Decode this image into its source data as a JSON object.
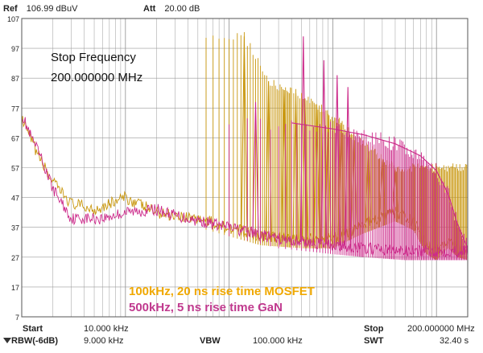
{
  "header": {
    "ref_label": "Ref",
    "ref_value": "106.99 dBuV",
    "att_label": "Att",
    "att_value": "20.00 dB"
  },
  "footer": {
    "start_label": "Start",
    "start_value": "10.000 kHz",
    "stop_label": "Stop",
    "stop_value": "200.000000 MHz",
    "rbw_label": "RBW(-6dB)",
    "rbw_value": "9.000 kHz",
    "vbw_label": "VBW",
    "vbw_value": "100.000 kHz",
    "swt_label": "SWT",
    "swt_value": "32.40 s"
  },
  "marker": {
    "line1": "Stop Frequency",
    "line2": "200.000000 MHz"
  },
  "colors": {
    "mosfet": "#c8960c",
    "gan": "#cc2a8a",
    "mosfet_text": "#f0a800",
    "gan_text": "#c0398e",
    "grid": "#9a9a9a"
  },
  "chart_data": {
    "type": "line",
    "title": "",
    "xlabel": "Frequency",
    "ylabel": "dBuV",
    "x_scale": "log",
    "xlim": [
      10000,
      200000000
    ],
    "ylim": [
      7,
      107
    ],
    "y_ticks": [
      107,
      97,
      87,
      77,
      67,
      57,
      47,
      37,
      27,
      17,
      7
    ],
    "series": [
      {
        "name": "100kHz, 20 ns rise time MOSFET",
        "color": "#c8960c",
        "fundamental_hz": 100000,
        "points": [
          [
            10000,
            73
          ],
          [
            12000,
            67
          ],
          [
            15000,
            60
          ],
          [
            20000,
            52
          ],
          [
            30000,
            45
          ],
          [
            50000,
            43
          ],
          [
            100000,
            47
          ],
          [
            200000,
            42
          ],
          [
            500000,
            40
          ],
          [
            1000000,
            37
          ],
          [
            2000000,
            34
          ],
          [
            5000000,
            33
          ],
          [
            10000000,
            33
          ],
          [
            20000000,
            38
          ],
          [
            40000000,
            42
          ],
          [
            60000000,
            39
          ],
          [
            80000000,
            31
          ],
          [
            100000000,
            29
          ],
          [
            130000000,
            33
          ],
          [
            160000000,
            30
          ],
          [
            200000000,
            29
          ]
        ],
        "peaks": [
          [
            1400000,
            101
          ],
          [
            2400000,
            86
          ],
          [
            3400000,
            83
          ],
          [
            4400000,
            82
          ],
          [
            5400000,
            80
          ],
          [
            7000000,
            78
          ],
          [
            9000000,
            75
          ],
          [
            12000000,
            72
          ],
          [
            16000000,
            68
          ],
          [
            22000000,
            64
          ],
          [
            30000000,
            60
          ],
          [
            40000000,
            57
          ]
        ]
      },
      {
        "name": "500kHz, 5 ns rise time GaN",
        "color": "#cc2a8a",
        "fundamental_hz": 500000,
        "points": [
          [
            10000,
            75
          ],
          [
            12000,
            68
          ],
          [
            15000,
            61
          ],
          [
            20000,
            50
          ],
          [
            30000,
            40
          ],
          [
            60000,
            40
          ],
          [
            100000,
            42
          ],
          [
            200000,
            43
          ],
          [
            300000,
            41
          ],
          [
            1000000,
            37
          ],
          [
            3000000,
            33
          ],
          [
            10000000,
            31
          ],
          [
            20000000,
            30
          ],
          [
            50000000,
            29
          ],
          [
            100000000,
            29
          ],
          [
            200000000,
            29
          ]
        ],
        "envelope": [
          [
            4000000,
            72
          ],
          [
            10000000,
            70
          ],
          [
            20000000,
            68
          ],
          [
            40000000,
            65
          ],
          [
            70000000,
            61
          ],
          [
            100000000,
            56
          ],
          [
            130000000,
            48
          ],
          [
            160000000,
            38
          ],
          [
            200000000,
            30
          ]
        ],
        "peaks": [
          [
            1800000,
            79
          ],
          [
            5200000,
            101
          ],
          [
            8200000,
            93
          ],
          [
            11000000,
            88
          ],
          [
            14000000,
            84
          ]
        ]
      }
    ],
    "legend": [
      "100kHz, 20 ns rise time MOSFET",
      "500kHz, 5 ns rise time GaN"
    ],
    "legend_position": "bottom-left"
  }
}
